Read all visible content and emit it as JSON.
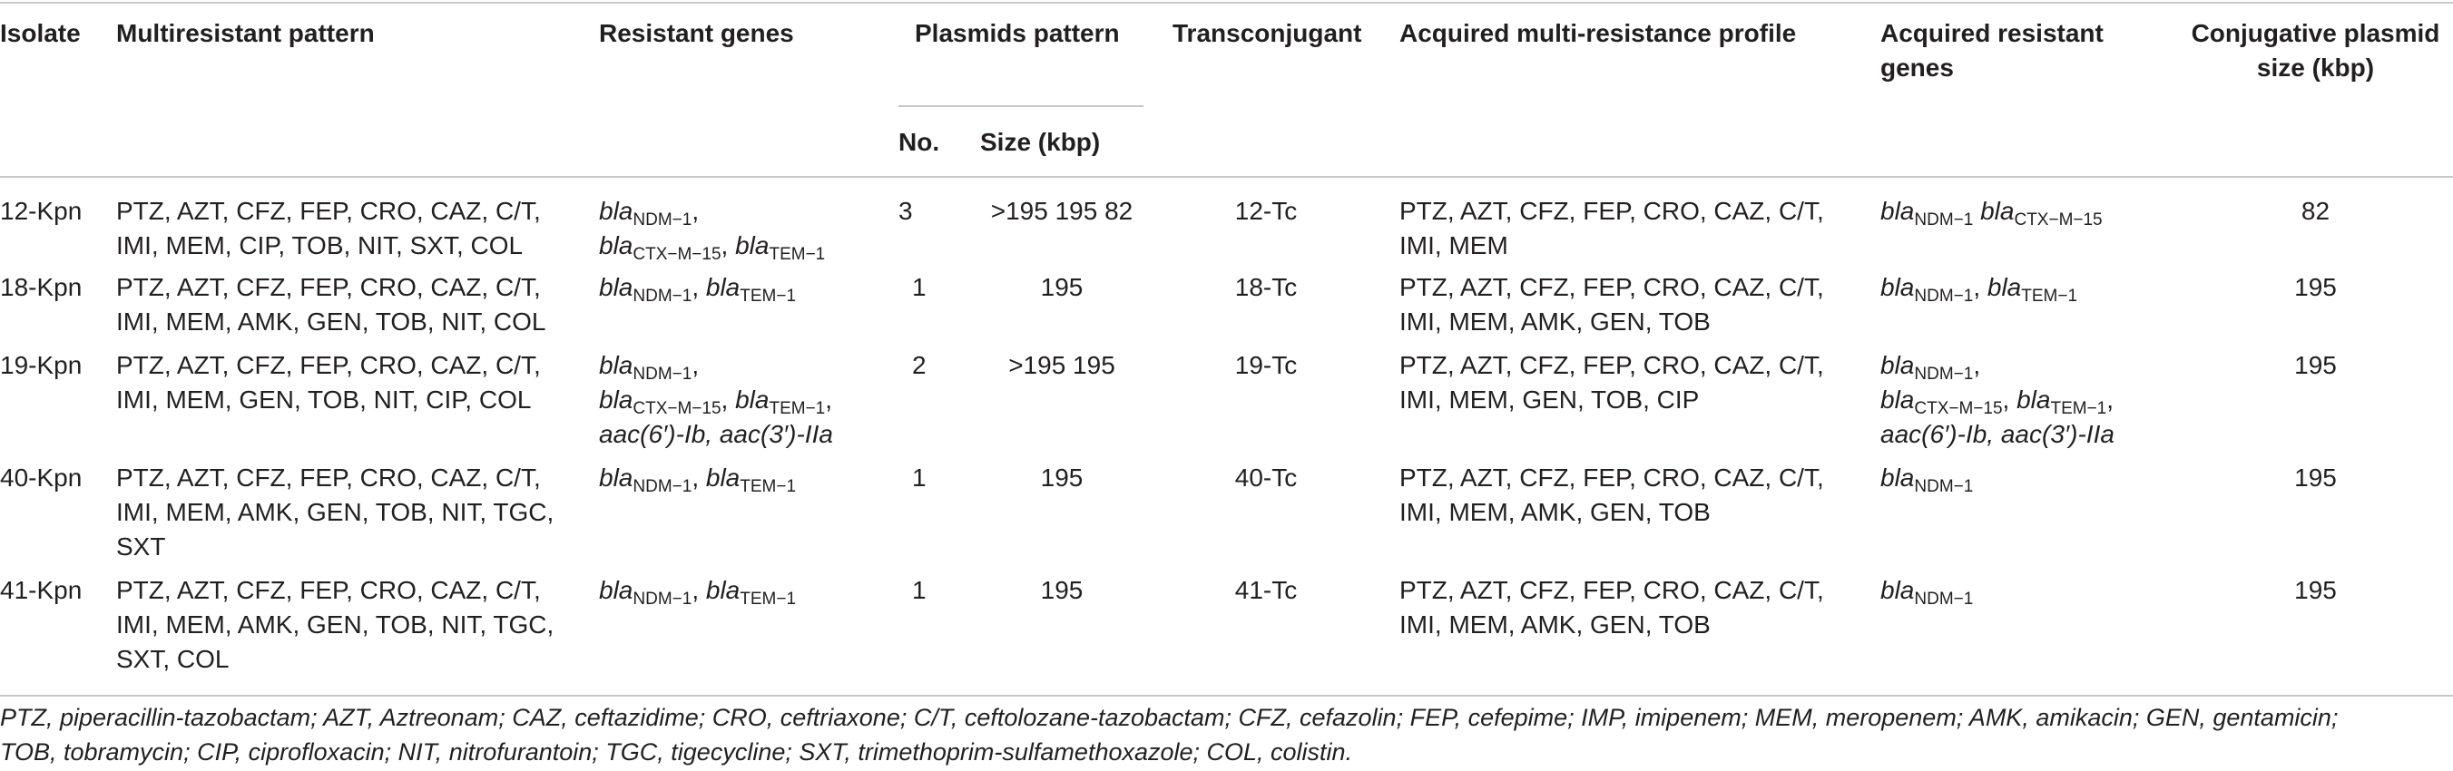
{
  "headers": {
    "isolate": "Isolate",
    "multiresistant": "Multiresistant pattern",
    "resistant_genes": "Resistant genes",
    "plasmids_pattern": "Plasmids pattern",
    "no": "No.",
    "size": "Size (kbp)",
    "transconjugant": "Transconjugant",
    "acquired_profile": "Acquired multi-resistance profile",
    "acquired_genes_l1": "Acquired resistant",
    "acquired_genes_l2": "genes",
    "conj_size_l1": "Conjugative plasmid",
    "conj_size_l2": "size (kbp)"
  },
  "gene_parts": {
    "bla": "bla",
    "ndm": "NDM−1",
    "ctx": "CTX−M−15",
    "tem": "TEM−1",
    "aac1": "aac(6′)-Ib",
    "aac2": "aac(3′)-IIa",
    "sep": ",",
    "sep_and": ", "
  },
  "rows": [
    {
      "isolate": "12-Kpn",
      "pattern": [
        "PTZ, AZT, CFZ, FEP, CRO, CAZ, C/T,",
        "IMI, MEM, CIP, TOB, NIT, SXT, COL"
      ],
      "no": "3",
      "size": ">195 195 82",
      "tc": "12-Tc",
      "profile": [
        "PTZ, AZT, CFZ, FEP, CRO, CAZ, C/T,",
        "IMI, MEM"
      ],
      "conj": "82"
    },
    {
      "isolate": "18-Kpn",
      "pattern": [
        "PTZ, AZT, CFZ, FEP, CRO, CAZ, C/T,",
        "IMI, MEM, AMK, GEN, TOB, NIT, COL"
      ],
      "no": "1",
      "size": "195",
      "tc": "18-Tc",
      "profile": [
        "PTZ, AZT, CFZ, FEP, CRO, CAZ, C/T,",
        "IMI, MEM, AMK, GEN, TOB"
      ],
      "conj": "195"
    },
    {
      "isolate": "19-Kpn",
      "pattern": [
        "PTZ, AZT, CFZ, FEP, CRO, CAZ, C/T,",
        "IMI, MEM, GEN, TOB, NIT, CIP, COL"
      ],
      "no": "2",
      "size": ">195 195",
      "tc": "19-Tc",
      "profile": [
        "PTZ, AZT, CFZ, FEP, CRO, CAZ, C/T,",
        "IMI, MEM, GEN, TOB, CIP"
      ],
      "conj": "195"
    },
    {
      "isolate": "40-Kpn",
      "pattern": [
        "PTZ, AZT, CFZ, FEP, CRO, CAZ, C/T,",
        "IMI, MEM, AMK, GEN, TOB, NIT, TGC,",
        "SXT"
      ],
      "no": "1",
      "size": "195",
      "tc": "40-Tc",
      "profile": [
        "PTZ, AZT, CFZ, FEP, CRO, CAZ, C/T,",
        "IMI, MEM, AMK, GEN, TOB"
      ],
      "conj": "195"
    },
    {
      "isolate": "41-Kpn",
      "pattern": [
        "PTZ, AZT, CFZ, FEP, CRO, CAZ, C/T,",
        "IMI, MEM, AMK, GEN, TOB, NIT, TGC,",
        "SXT, COL"
      ],
      "no": "1",
      "size": "195",
      "tc": "41-Tc",
      "profile": [
        "PTZ, AZT, CFZ, FEP, CRO, CAZ, C/T,",
        "IMI, MEM, AMK, GEN, TOB"
      ],
      "conj": "195"
    }
  ],
  "footnote": [
    "PTZ, piperacillin-tazobactam; AZT, Aztreonam; CAZ, ceftazidime; CRO, ceftriaxone; C/T, ceftolozane-tazobactam; CFZ, cefazolin; FEP, cefepime; IMP, imipenem; MEM, meropenem; AMK, amikacin; GEN, gentamicin;",
    "TOB, tobramycin; CIP, ciprofloxacin; NIT, nitrofurantoin; TGC, tigecycline; SXT, trimethoprim-sulfamethoxazole; COL, colistin."
  ]
}
